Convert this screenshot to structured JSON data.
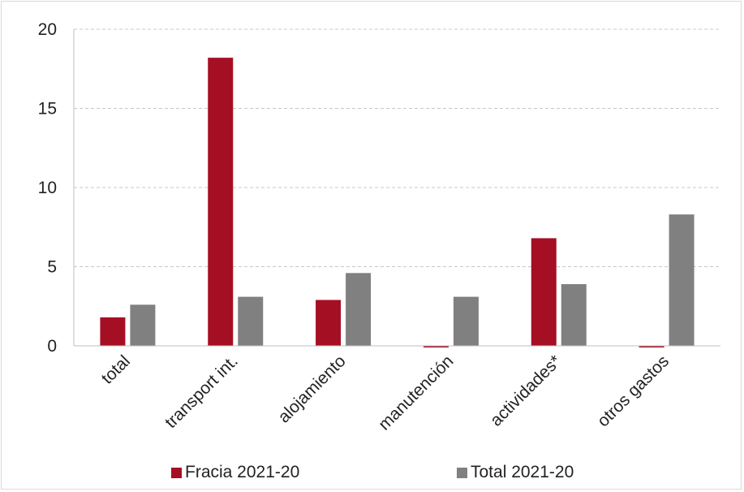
{
  "chart_data": {
    "type": "bar",
    "categories": [
      "total",
      "transport int.",
      "alojamiento",
      "manutención",
      "actividades*",
      "otros gastos"
    ],
    "series": [
      {
        "name": "Fracia 2021-20",
        "color": "#a50f24",
        "values": [
          1.8,
          18.2,
          2.9,
          -0.1,
          6.8,
          -0.1
        ]
      },
      {
        "name": "Total 2021-20",
        "color": "#808080",
        "values": [
          2.6,
          3.1,
          4.6,
          3.1,
          3.9,
          8.3
        ]
      }
    ],
    "yticks": [
      0,
      5,
      10,
      15,
      20
    ],
    "ylim": [
      0,
      20
    ],
    "grid": true,
    "legend_position": "bottom"
  }
}
